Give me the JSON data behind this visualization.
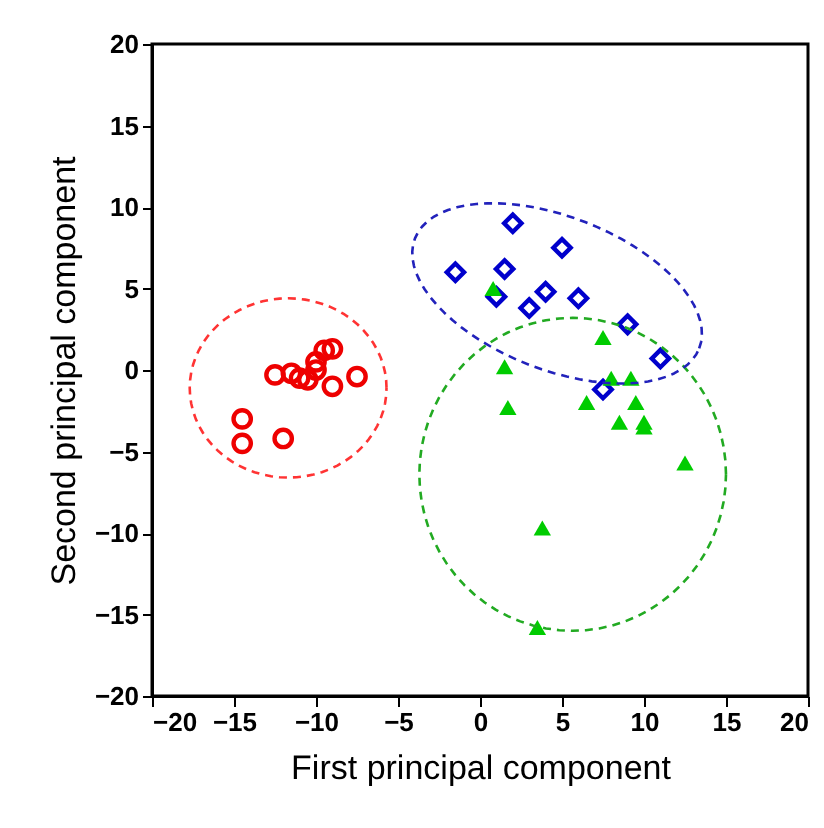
{
  "chart_data": {
    "type": "scatter",
    "xlabel": "First principal component",
    "ylabel": "Second principal component",
    "xlim": [
      -20,
      20
    ],
    "ylim": [
      -20,
      20
    ],
    "xticks": [
      -20,
      -15,
      -10,
      -5,
      0,
      5,
      10,
      15,
      20
    ],
    "yticks": [
      -20,
      -15,
      -10,
      -5,
      0,
      5,
      10,
      15,
      20
    ],
    "grid": false,
    "series": [
      {
        "marker": "circle",
        "color": "#ee0000",
        "x": [
          -14.5,
          -14.5,
          -12,
          -12.5,
          -11.5,
          -11,
          -10,
          -9.5,
          -9,
          -10,
          -9,
          -7.5,
          -10.5
        ],
        "values": [
          -3,
          -4.5,
          -4.2,
          -0.3,
          -0.2,
          -0.5,
          0,
          1.2,
          1.3,
          0.5,
          -1,
          -0.4,
          -0.6
        ]
      },
      {
        "marker": "diamond",
        "color": "#0000cc",
        "x": [
          -1.5,
          1,
          1.5,
          2,
          3,
          4,
          5,
          6,
          9,
          11,
          7.5
        ],
        "values": [
          6,
          4.5,
          6.2,
          9,
          3.8,
          4.8,
          7.5,
          4.4,
          2.8,
          0.7,
          -1.2
        ]
      },
      {
        "marker": "triangle",
        "color": "#00cc00",
        "x": [
          0.8,
          1.5,
          1.7,
          7.5,
          8,
          9.2,
          9.5,
          6.5,
          8.5,
          10,
          10,
          12.5,
          3.8,
          3.5
        ],
        "values": [
          5,
          0.2,
          -2.3,
          2,
          -0.5,
          -0.5,
          -2,
          -2,
          -3.2,
          -3.5,
          -3.2,
          -5.7,
          -9.7,
          -15.8
        ]
      }
    ]
  }
}
